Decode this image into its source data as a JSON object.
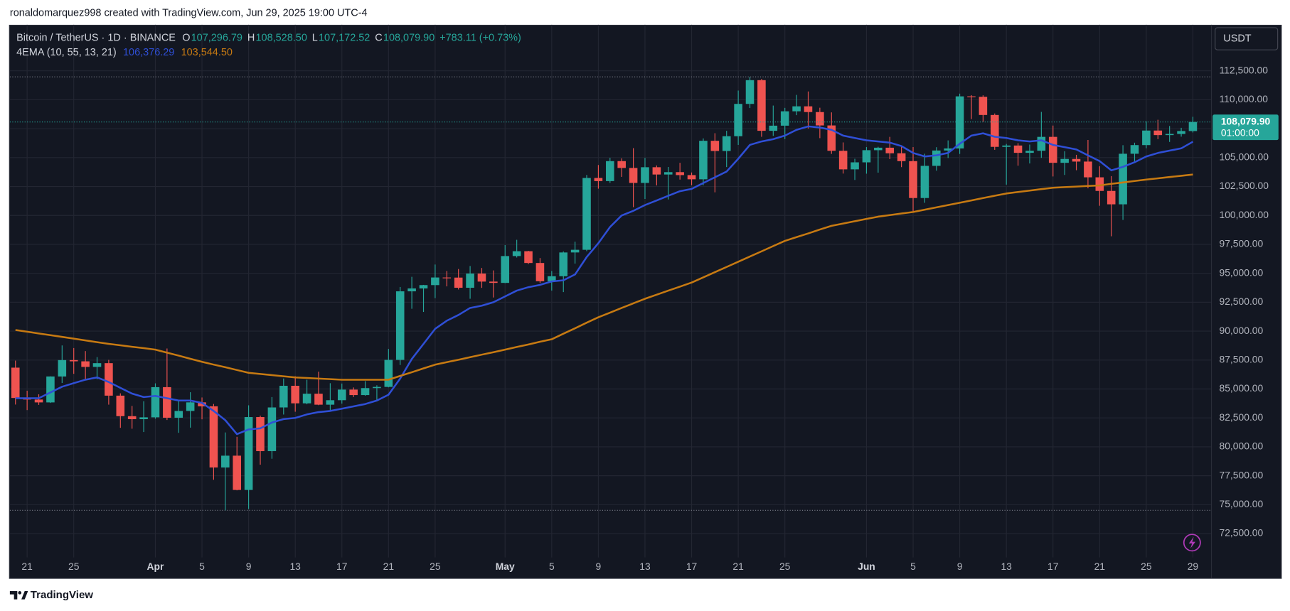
{
  "header": {
    "text": "ronaldomarquez998 created with TradingView.com, Jun 29, 2025 19:00 UTC-4"
  },
  "footer": {
    "brand": "TradingView"
  },
  "chart_data": {
    "type": "candlestick",
    "legend": {
      "symbol": "Bitcoin / TetherUS · 1D · BINANCE",
      "fields": [
        {
          "key": "O",
          "value": 107296.79,
          "label": "107,296.79"
        },
        {
          "key": "H",
          "value": 108528.5,
          "label": "108,528.50"
        },
        {
          "key": "L",
          "value": 107172.52,
          "label": "107,172.52"
        },
        {
          "key": "C",
          "value": 108079.9,
          "label": "108,079.90"
        }
      ],
      "change": "+783.11 (+0.73%)"
    },
    "currency": "USDT",
    "last_price": {
      "value": 108079.9,
      "label": "108,079.90"
    },
    "countdown": "01:00:00",
    "up_color": "#26a69a",
    "down_color": "#ef5350",
    "categories": [
      null,
      "21",
      null,
      null,
      null,
      "25",
      null,
      null,
      null,
      null,
      null,
      null,
      "Apr",
      null,
      null,
      null,
      "5",
      null,
      null,
      null,
      "9",
      null,
      null,
      null,
      "13",
      null,
      null,
      null,
      "17",
      null,
      null,
      null,
      "21",
      null,
      null,
      null,
      "25",
      null,
      null,
      null,
      null,
      null,
      "May",
      null,
      null,
      null,
      "5",
      null,
      null,
      null,
      "9",
      null,
      null,
      null,
      "13",
      null,
      null,
      null,
      "17",
      null,
      null,
      null,
      "21",
      null,
      null,
      null,
      "25",
      null,
      null,
      null,
      null,
      null,
      null,
      "Jun",
      null,
      null,
      null,
      "5",
      null,
      null,
      null,
      "9",
      null,
      null,
      null,
      "13",
      null,
      null,
      null,
      "17",
      null,
      null,
      null,
      "21",
      null,
      null,
      null,
      "25",
      null,
      null,
      null,
      "29"
    ],
    "open": [
      86845,
      84223,
      84088,
      83840,
      86082,
      87498,
      87392,
      86909,
      87232,
      84424,
      82649,
      82390,
      82550,
      85159,
      82516,
      83102,
      83844,
      83504,
      78214,
      79235,
      76272,
      82573,
      79626,
      83404,
      85276,
      83760,
      84591,
      83643,
      84030,
      84947,
      84474,
      85077,
      85179,
      87516,
      93442,
      93691,
      93980,
      94638,
      94629,
      93750,
      94979,
      94284,
      94172,
      96490,
      96910,
      95891,
      94315,
      94748,
      96802,
      97032,
      103241,
      102971,
      104697,
      104106,
      102812,
      104169,
      103539,
      103744,
      103489,
      103126,
      106454,
      105573,
      106850,
      109643,
      111696,
      107318,
      107761,
      109004,
      109434,
      108938,
      107781,
      105589,
      103985,
      104591,
      105642,
      105857,
      105376,
      104696,
      101508,
      104288,
      105615,
      105793,
      110295,
      110257,
      108686,
      105930,
      106046,
      105414,
      105594,
      106794,
      104551,
      104886,
      104658,
      103297,
      102120,
      100963,
      105334,
      106083,
      107340,
      106947,
      107047,
      107296.79
    ],
    "high": [
      87453,
      84850,
      84539,
      86094,
      88765,
      88539,
      88275,
      87756,
      87515,
      84624,
      83534,
      83943,
      85487,
      88500,
      83998,
      84720,
      84266,
      83705,
      81243,
      80867,
      83588,
      82700,
      84300,
      85905,
      86100,
      85799,
      86496,
      85500,
      85470,
      85132,
      85677,
      85320,
      88465,
      93817,
      94696,
      94000,
      95758,
      95199,
      95369,
      95630,
      95461,
      95249,
      97437,
      97895,
      96943,
      96318,
      95199,
      96890,
      97732,
      103500,
      104361,
      104984,
      104937,
      105819,
      104976,
      104322,
      104193,
      104550,
      103716,
      106660,
      107109,
      107320,
      110797,
      111980,
      111800,
      109500,
      109299,
      110422,
      110718,
      109313,
      108910,
      106313,
      104900,
      105909,
      105935,
      106794,
      106000,
      105909,
      105333,
      105900,
      106488,
      110530,
      110400,
      110384,
      108813,
      106182,
      106250,
      106128,
      108952,
      107771,
      105550,
      105240,
      106524,
      104249,
      103400,
      106074,
      106290,
      108135,
      108272,
      107735,
      107577,
      108528.5
    ],
    "low": [
      83655,
      83175,
      83625,
      83794,
      85519,
      86310,
      85860,
      85837,
      83646,
      81644,
      81565,
      81279,
      82429,
      82320,
      81211,
      81659,
      82379,
      77153,
      74508,
      76239,
      74620,
      78456,
      78969,
      82792,
      83034,
      83678,
      83600,
      83111,
      83736,
      84303,
      84418,
      83950,
      85144,
      87076,
      91935,
      91660,
      92855,
      93870,
      93602,
      92800,
      93742,
      92910,
      94153,
      96364,
      95800,
      94173,
      93500,
      93377,
      95840,
      96913,
      102316,
      102818,
      103335,
      100718,
      101429,
      102600,
      101383,
      103100,
      102615,
      102612,
      102000,
      104184,
      106100,
      109285,
      106800,
      106880,
      106601,
      108670,
      107516,
      106682,
      105322,
      103621,
      103068,
      103612,
      103700,
      104872,
      104179,
      100372,
      101095,
      103871,
      104964,
      105318,
      108331,
      108086,
      105671,
      102664,
      104300,
      104494,
      104980,
      103371,
      103500,
      103910,
      102345,
      100838,
      98200,
      99613,
      104622,
      105808,
      106596,
      106356,
      106812,
      107172.52
    ],
    "close": [
      84223,
      84088,
      83840,
      86082,
      87498,
      87392,
      86909,
      87232,
      84424,
      82649,
      82390,
      82550,
      85159,
      82516,
      83102,
      83844,
      83504,
      78214,
      79235,
      76272,
      82573,
      79626,
      83404,
      85276,
      83760,
      84591,
      83643,
      84030,
      84947,
      84474,
      85077,
      85179,
      87516,
      93442,
      93691,
      93980,
      94638,
      94629,
      93750,
      94979,
      94284,
      94172,
      96490,
      96910,
      95891,
      94315,
      94748,
      96802,
      97032,
      103241,
      102971,
      104697,
      104106,
      102812,
      104169,
      103539,
      103744,
      103489,
      103126,
      106454,
      105573,
      106850,
      109643,
      111696,
      107318,
      107761,
      109004,
      109434,
      108938,
      107781,
      105589,
      103985,
      104591,
      105642,
      105857,
      105376,
      104696,
      101508,
      104288,
      105615,
      105793,
      110295,
      110257,
      108686,
      105930,
      106046,
      105414,
      105594,
      106794,
      104551,
      104886,
      104658,
      103297,
      102120,
      100963,
      105334,
      106083,
      107340,
      106947,
      107047,
      107296.79,
      108079.9
    ],
    "indicator": {
      "label": "4EMA (10, 55, 13, 21)",
      "series": [
        {
          "color": "#2f4fd6",
          "last": {
            "value": 106376.29,
            "label": "106,376.29"
          },
          "values": [
            84200,
            84200,
            84200,
            84700,
            85200,
            85500,
            85800,
            86000,
            85600,
            85100,
            84600,
            84300,
            84400,
            84200,
            84000,
            84000,
            83800,
            83100,
            82300,
            81100,
            81500,
            81600,
            82100,
            82400,
            82500,
            82800,
            83000,
            83100,
            83300,
            83500,
            83700,
            84000,
            84500,
            85900,
            87600,
            88900,
            90200,
            90900,
            91400,
            92000,
            92200,
            92500,
            93000,
            93500,
            93800,
            94000,
            94300,
            94400,
            94900,
            96400,
            97600,
            99000,
            100000,
            100400,
            100900,
            101300,
            101700,
            102100,
            102300,
            102800,
            103300,
            103800,
            104900,
            106100,
            106400,
            106600,
            106900,
            107400,
            107700,
            107600,
            107400,
            106900,
            106700,
            106500,
            106400,
            106300,
            106000,
            105400,
            105100,
            105200,
            105400,
            106200,
            106900,
            107100,
            106800,
            106700,
            106500,
            106400,
            106500,
            106100,
            105900,
            105700,
            105200,
            104700,
            103900,
            104200,
            104600,
            105100,
            105400,
            105600,
            105800,
            106376.29
          ]
        },
        {
          "color": "#c77a12",
          "last": {
            "value": 103544.5,
            "label": "103,544.50"
          },
          "values": [
            90100,
            89950,
            89800,
            89650,
            89500,
            89350,
            89200,
            89050,
            88900,
            88780,
            88650,
            88530,
            88400,
            88140,
            87880,
            87610,
            87350,
            87110,
            86880,
            86640,
            86400,
            86300,
            86200,
            86100,
            86000,
            85950,
            85900,
            85850,
            85800,
            85800,
            85800,
            85800,
            85800,
            86130,
            86450,
            86780,
            87100,
            87320,
            87530,
            87750,
            87970,
            88180,
            88400,
            88630,
            88850,
            89080,
            89300,
            89780,
            90250,
            90730,
            91200,
            91600,
            92000,
            92400,
            92800,
            93150,
            93500,
            93850,
            94200,
            94650,
            95100,
            95550,
            96000,
            96450,
            96900,
            97350,
            97800,
            98130,
            98450,
            98780,
            99100,
            99300,
            99500,
            99700,
            99900,
            100030,
            100170,
            100300,
            100500,
            100700,
            100900,
            101100,
            101300,
            101500,
            101700,
            101900,
            102030,
            102150,
            102280,
            102400,
            102450,
            102500,
            102550,
            102600,
            102730,
            102850,
            102980,
            103100,
            103210,
            103320,
            103430,
            103544.5
          ]
        }
      ]
    },
    "ylim": [
      70440,
      116480
    ],
    "yticks": [
      {
        "value": 72500,
        "label": "72,500.00"
      },
      {
        "value": 75000,
        "label": "75,000.00"
      },
      {
        "value": 77500,
        "label": "77,500.00"
      },
      {
        "value": 80000,
        "label": "80,000.00"
      },
      {
        "value": 82500,
        "label": "82,500.00"
      },
      {
        "value": 85000,
        "label": "85,000.00"
      },
      {
        "value": 87500,
        "label": "87,500.00"
      },
      {
        "value": 90000,
        "label": "90,000.00"
      },
      {
        "value": 92500,
        "label": "92,500.00"
      },
      {
        "value": 95000,
        "label": "95,000.00"
      },
      {
        "value": 97500,
        "label": "97,500.00"
      },
      {
        "value": 100000,
        "label": "100,000.00"
      },
      {
        "value": 102500,
        "label": "102,500.00"
      },
      {
        "value": 105000,
        "label": "105,000.00"
      },
      {
        "value": 107500,
        "label": "107,500.00"
      },
      {
        "value": 110000,
        "label": "110,000.00"
      },
      {
        "value": 112500,
        "label": "112,500.00"
      }
    ],
    "grid": true
  }
}
